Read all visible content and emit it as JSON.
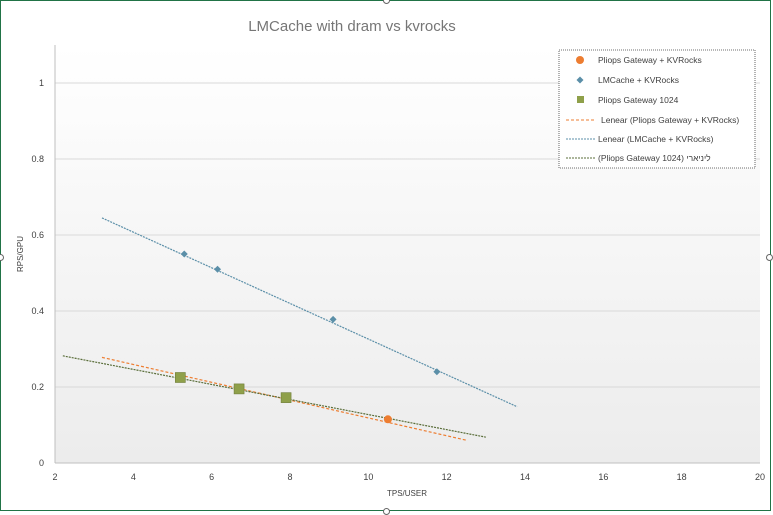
{
  "chart_data": {
    "type": "scatter",
    "title": "LMCache with dram vs kvrocks",
    "xlabel": "TPS/USER",
    "ylabel": "RPS/GPU",
    "xlim": [
      2,
      20
    ],
    "ylim": [
      0,
      1.1
    ],
    "x_ticks": [
      "2",
      "4",
      "6",
      "8",
      "10",
      "12",
      "14",
      "16",
      "18",
      "20"
    ],
    "y_ticks": [
      "0",
      "0.2",
      "0.4",
      "0.6",
      "0.8",
      "1"
    ],
    "legend_position": "top-right",
    "series": [
      {
        "name": "Pliops Gateway + KVRocks",
        "marker": "circle",
        "color": "#ED7D31",
        "points": [
          [
            5.2,
            0.225
          ],
          [
            6.7,
            0.195
          ],
          [
            7.9,
            0.172
          ],
          [
            10.5,
            0.115
          ]
        ]
      },
      {
        "name": "LMCache + KVRocks",
        "marker": "diamond",
        "color": "#5B8FA8",
        "points": [
          [
            5.3,
            0.55
          ],
          [
            6.15,
            0.51
          ],
          [
            9.1,
            0.378
          ],
          [
            11.75,
            0.24
          ]
        ]
      },
      {
        "name": "Pliops Gateway 1024",
        "marker": "square",
        "color": "#8FA04A",
        "points": [
          [
            5.2,
            0.225
          ],
          [
            6.7,
            0.195
          ],
          [
            7.9,
            0.172
          ]
        ]
      }
    ],
    "trendlines": [
      {
        "name": "Lenear (Pliops Gateway + KVRocks)",
        "color": "#ED7D31",
        "dash": "3,2",
        "from": [
          3.2,
          0.278
        ],
        "to": [
          12.5,
          0.06
        ]
      },
      {
        "name": "Lenear (LMCache + KVRocks)",
        "color": "#5B8FA8",
        "dash": "2,1",
        "from": [
          3.2,
          0.645
        ],
        "to": [
          13.8,
          0.148
        ]
      },
      {
        "name": "(Pliops Gateway 1024) ליניארי",
        "color": "#5A6E3A",
        "dash": "2,1",
        "from": [
          2.2,
          0.282
        ],
        "to": [
          13.0,
          0.068
        ]
      }
    ]
  }
}
